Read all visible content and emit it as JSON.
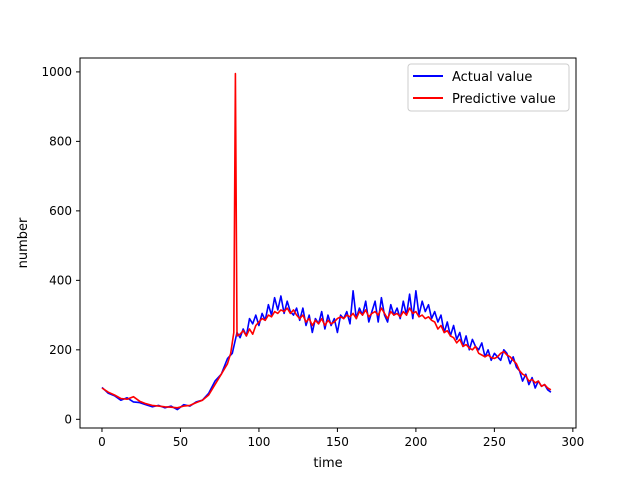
{
  "chart_data": {
    "type": "line",
    "title": "",
    "xlabel": "time",
    "ylabel": "number",
    "xlim": [
      -14,
      302
    ],
    "ylim": [
      -25,
      1040
    ],
    "xticks": [
      0,
      50,
      100,
      150,
      200,
      250,
      300
    ],
    "yticks": [
      0,
      200,
      400,
      600,
      800,
      1000
    ],
    "grid": false,
    "legend_position": "top-right",
    "series": [
      {
        "name": "Actual value",
        "color": "#0000ff",
        "x": [
          0,
          4,
          8,
          12,
          16,
          20,
          24,
          28,
          32,
          36,
          40,
          44,
          48,
          52,
          56,
          60,
          64,
          68,
          72,
          76,
          80,
          83,
          86,
          88,
          90,
          92,
          94,
          96,
          98,
          100,
          102,
          104,
          106,
          108,
          110,
          112,
          114,
          116,
          118,
          120,
          122,
          124,
          126,
          128,
          130,
          132,
          134,
          136,
          138,
          140,
          142,
          144,
          146,
          148,
          150,
          152,
          154,
          156,
          158,
          160,
          162,
          164,
          166,
          168,
          170,
          172,
          174,
          176,
          178,
          180,
          182,
          184,
          186,
          188,
          190,
          192,
          194,
          196,
          198,
          200,
          202,
          204,
          206,
          208,
          210,
          212,
          214,
          216,
          218,
          220,
          222,
          224,
          226,
          228,
          230,
          232,
          234,
          236,
          238,
          240,
          242,
          244,
          246,
          248,
          250,
          252,
          254,
          256,
          258,
          260,
          262,
          264,
          266,
          268,
          270,
          272,
          274,
          276,
          278,
          280,
          282,
          284,
          286
        ],
        "y": [
          92,
          75,
          68,
          55,
          62,
          50,
          48,
          42,
          36,
          40,
          33,
          38,
          28,
          42,
          38,
          50,
          55,
          75,
          110,
          130,
          175,
          190,
          250,
          235,
          260,
          240,
          290,
          275,
          300,
          270,
          305,
          285,
          330,
          300,
          350,
          315,
          355,
          305,
          340,
          310,
          300,
          320,
          285,
          320,
          270,
          300,
          250,
          290,
          275,
          310,
          260,
          300,
          270,
          290,
          250,
          300,
          290,
          310,
          275,
          370,
          290,
          320,
          300,
          340,
          280,
          310,
          340,
          280,
          350,
          300,
          280,
          330,
          300,
          320,
          290,
          340,
          300,
          360,
          290,
          370,
          300,
          340,
          310,
          330,
          290,
          310,
          280,
          300,
          250,
          280,
          240,
          270,
          230,
          250,
          210,
          240,
          200,
          230,
          210,
          200,
          220,
          180,
          200,
          170,
          190,
          180,
          170,
          200,
          190,
          160,
          180,
          150,
          140,
          110,
          130,
          100,
          120,
          90,
          110,
          95,
          100,
          85,
          78
        ]
      },
      {
        "name": "Predictive value",
        "color": "#ff0000",
        "x": [
          0,
          4,
          8,
          12,
          16,
          20,
          24,
          28,
          32,
          36,
          40,
          44,
          48,
          52,
          56,
          60,
          64,
          68,
          72,
          76,
          80,
          82,
          84,
          85,
          86,
          88,
          90,
          92,
          94,
          96,
          98,
          100,
          102,
          104,
          106,
          108,
          110,
          112,
          114,
          116,
          118,
          120,
          122,
          124,
          126,
          128,
          130,
          132,
          134,
          136,
          138,
          140,
          142,
          144,
          146,
          148,
          150,
          152,
          154,
          156,
          158,
          160,
          162,
          164,
          166,
          168,
          170,
          172,
          174,
          176,
          178,
          180,
          182,
          184,
          186,
          188,
          190,
          192,
          194,
          196,
          198,
          200,
          202,
          204,
          206,
          208,
          210,
          212,
          214,
          216,
          218,
          220,
          222,
          224,
          226,
          228,
          230,
          232,
          234,
          236,
          238,
          240,
          242,
          244,
          246,
          248,
          250,
          252,
          254,
          256,
          258,
          260,
          262,
          264,
          266,
          268,
          270,
          272,
          274,
          276,
          278,
          280,
          282,
          284,
          286
        ],
        "y": [
          90,
          78,
          70,
          60,
          58,
          65,
          52,
          45,
          40,
          38,
          36,
          35,
          33,
          38,
          40,
          48,
          55,
          70,
          100,
          130,
          160,
          190,
          250,
          995,
          240,
          245,
          255,
          240,
          260,
          245,
          270,
          280,
          290,
          285,
          300,
          295,
          310,
          305,
          315,
          310,
          320,
          305,
          315,
          300,
          290,
          300,
          280,
          290,
          270,
          285,
          275,
          290,
          270,
          285,
          275,
          280,
          290,
          295,
          290,
          300,
          295,
          305,
          290,
          310,
          300,
          315,
          295,
          305,
          310,
          300,
          320,
          305,
          290,
          310,
          300,
          305,
          295,
          310,
          300,
          320,
          305,
          310,
          295,
          300,
          290,
          295,
          285,
          280,
          260,
          270,
          250,
          255,
          240,
          235,
          220,
          230,
          210,
          215,
          205,
          200,
          210,
          190,
          185,
          180,
          185,
          178,
          175,
          180,
          190,
          195,
          185,
          180,
          170,
          160,
          140,
          130,
          125,
          110,
          115,
          105,
          110,
          95,
          100,
          90,
          85
        ]
      }
    ]
  }
}
